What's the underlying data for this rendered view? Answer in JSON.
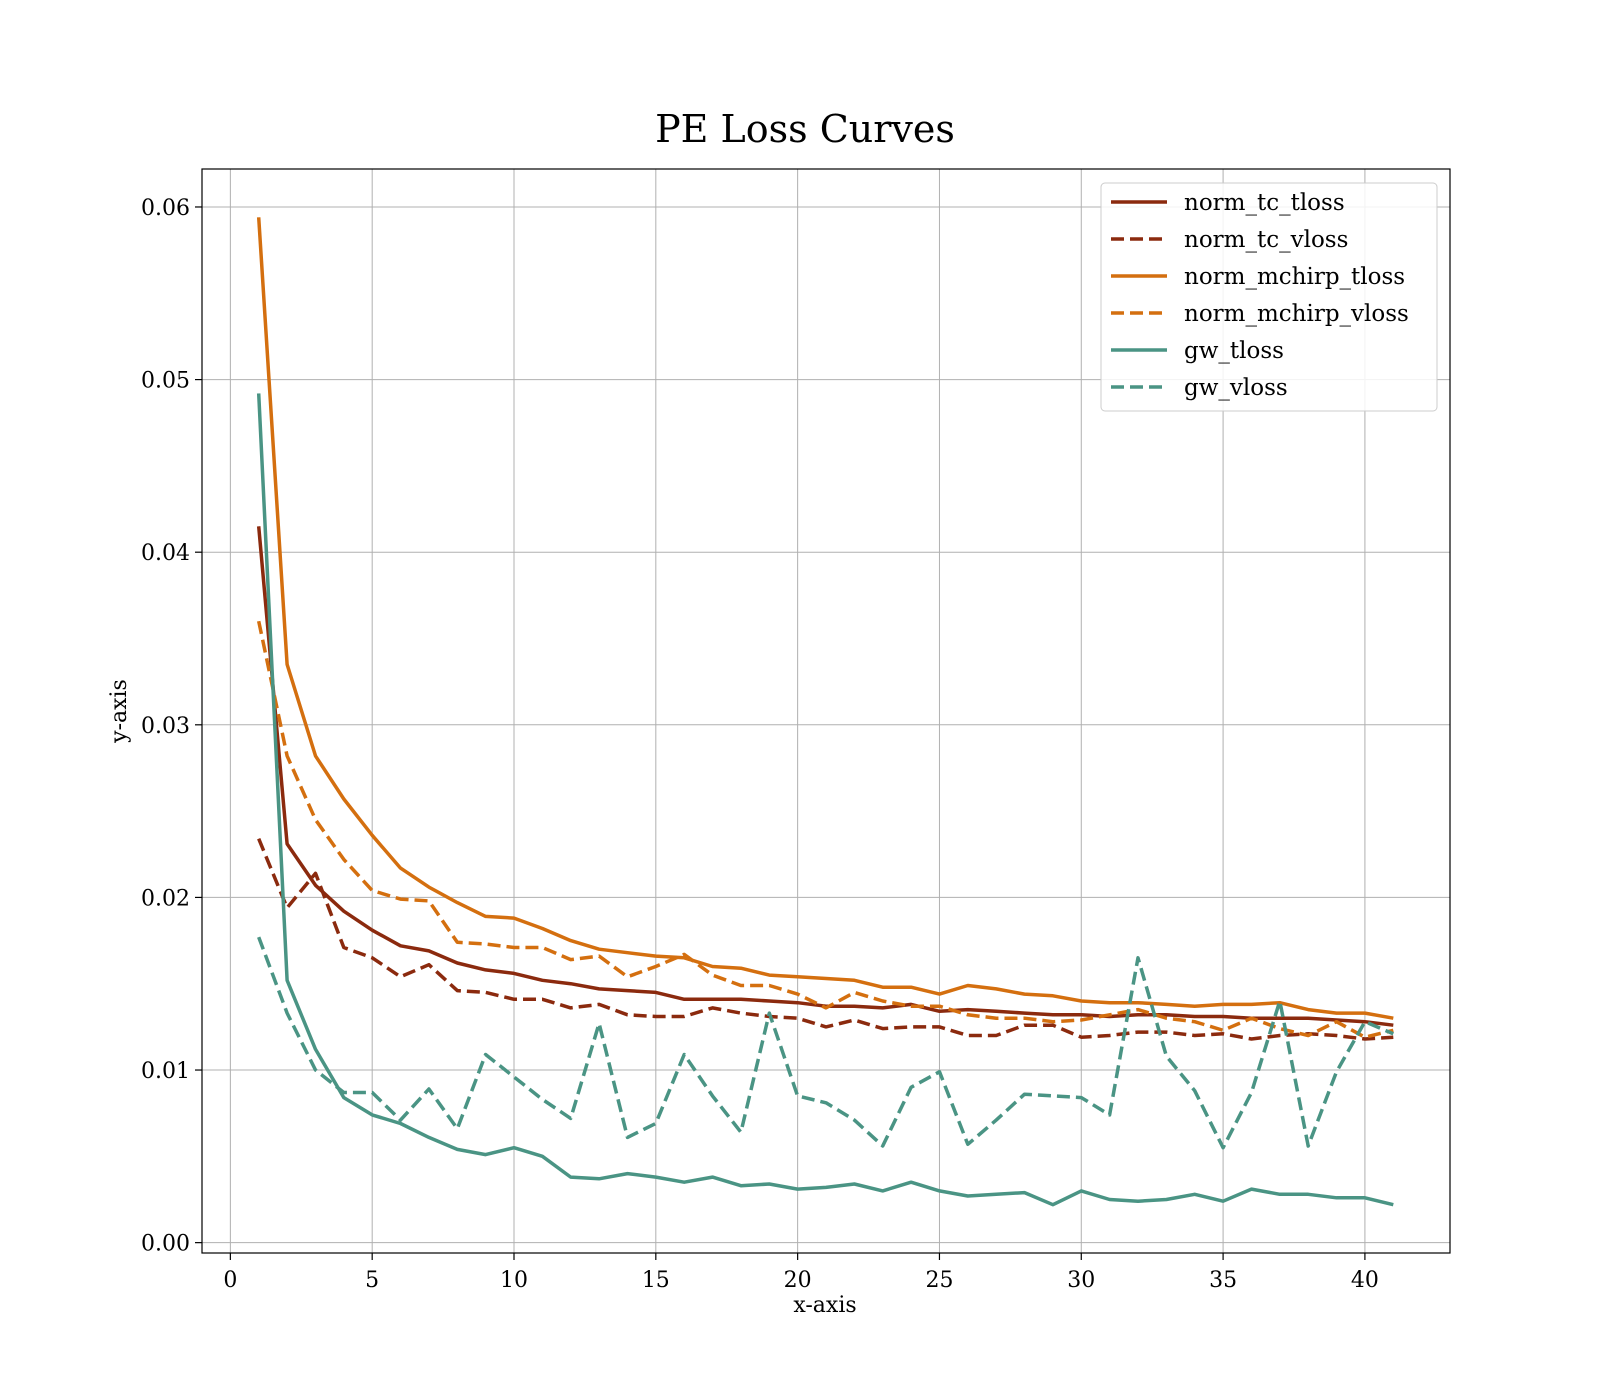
{
  "chart_data": {
    "type": "line",
    "title": "PE Loss Curves",
    "xlabel": "x-axis",
    "ylabel": "y-axis",
    "xlim": [
      -1,
      43
    ],
    "ylim": [
      -0.0006,
      0.0622
    ],
    "xticks": [
      0,
      5,
      10,
      15,
      20,
      25,
      30,
      35,
      40
    ],
    "xtick_labels": [
      "0",
      "5",
      "10",
      "15",
      "20",
      "25",
      "30",
      "35",
      "40"
    ],
    "yticks": [
      0.0,
      0.01,
      0.02,
      0.03,
      0.04,
      0.05,
      0.06
    ],
    "ytick_labels": [
      "0.00",
      "0.01",
      "0.02",
      "0.03",
      "0.04",
      "0.05",
      "0.06"
    ],
    "grid": true,
    "legend_position": "top-right",
    "x": [
      1,
      2,
      3,
      4,
      5,
      6,
      7,
      8,
      9,
      10,
      11,
      12,
      13,
      14,
      15,
      16,
      17,
      18,
      19,
      20,
      21,
      22,
      23,
      24,
      25,
      26,
      27,
      28,
      29,
      30,
      31,
      32,
      33,
      34,
      35,
      36,
      37,
      38,
      39,
      40,
      41
    ],
    "series": [
      {
        "name": "norm_tc_tloss",
        "color": "#8b2a0e",
        "dash": "solid",
        "values": [
          0.0415,
          0.0231,
          0.0207,
          0.0192,
          0.0181,
          0.0172,
          0.0169,
          0.0162,
          0.0158,
          0.0156,
          0.0152,
          0.015,
          0.0147,
          0.0146,
          0.0145,
          0.0141,
          0.0141,
          0.0141,
          0.014,
          0.0139,
          0.0137,
          0.0137,
          0.0136,
          0.0138,
          0.0134,
          0.0135,
          0.0134,
          0.0133,
          0.0132,
          0.0132,
          0.0131,
          0.0132,
          0.0132,
          0.0131,
          0.0131,
          0.013,
          0.013,
          0.013,
          0.0129,
          0.0128,
          0.0126
        ]
      },
      {
        "name": "norm_tc_vloss",
        "color": "#8b2a0e",
        "dash": "dashed",
        "values": [
          0.0234,
          0.0194,
          0.0214,
          0.0171,
          0.0165,
          0.0154,
          0.0161,
          0.0146,
          0.0145,
          0.0141,
          0.0141,
          0.0136,
          0.0138,
          0.0132,
          0.0131,
          0.0131,
          0.0136,
          0.0133,
          0.0131,
          0.013,
          0.0125,
          0.0129,
          0.0124,
          0.0125,
          0.0125,
          0.012,
          0.012,
          0.0126,
          0.0126,
          0.0119,
          0.012,
          0.0122,
          0.0122,
          0.012,
          0.0121,
          0.0118,
          0.012,
          0.0121,
          0.012,
          0.0118,
          0.0119
        ]
      },
      {
        "name": "norm_mchirp_tloss",
        "color": "#d46f0f",
        "dash": "solid",
        "values": [
          0.0594,
          0.0335,
          0.0282,
          0.0257,
          0.0236,
          0.0217,
          0.0206,
          0.0197,
          0.0189,
          0.0188,
          0.0182,
          0.0175,
          0.017,
          0.0168,
          0.0166,
          0.0165,
          0.016,
          0.0159,
          0.0155,
          0.0154,
          0.0153,
          0.0152,
          0.0148,
          0.0148,
          0.0144,
          0.0149,
          0.0147,
          0.0144,
          0.0143,
          0.014,
          0.0139,
          0.0139,
          0.0138,
          0.0137,
          0.0138,
          0.0138,
          0.0139,
          0.0135,
          0.0133,
          0.0133,
          0.013
        ]
      },
      {
        "name": "norm_mchirp_vloss",
        "color": "#d46f0f",
        "dash": "dashed",
        "values": [
          0.036,
          0.0282,
          0.0245,
          0.0222,
          0.0204,
          0.0199,
          0.0198,
          0.0174,
          0.0173,
          0.0171,
          0.0171,
          0.0164,
          0.0166,
          0.0154,
          0.016,
          0.0167,
          0.0155,
          0.0149,
          0.0149,
          0.0144,
          0.0136,
          0.0145,
          0.014,
          0.0137,
          0.0137,
          0.0132,
          0.013,
          0.013,
          0.0128,
          0.0129,
          0.0132,
          0.0135,
          0.013,
          0.0128,
          0.0123,
          0.013,
          0.0124,
          0.012,
          0.0128,
          0.0119,
          0.0123
        ]
      },
      {
        "name": "gw_tloss",
        "color": "#4a9484",
        "dash": "solid",
        "values": [
          0.0492,
          0.0152,
          0.0112,
          0.0084,
          0.0074,
          0.0069,
          0.0061,
          0.0054,
          0.0051,
          0.0055,
          0.005,
          0.0038,
          0.0037,
          0.004,
          0.0038,
          0.0035,
          0.0038,
          0.0033,
          0.0034,
          0.0031,
          0.0032,
          0.0034,
          0.003,
          0.0035,
          0.003,
          0.0027,
          0.0028,
          0.0029,
          0.0022,
          0.003,
          0.0025,
          0.0024,
          0.0025,
          0.0028,
          0.0024,
          0.0031,
          0.0028,
          0.0028,
          0.0026,
          0.0026,
          0.0022
        ]
      },
      {
        "name": "gw_vloss",
        "color": "#4a9484",
        "dash": "dashed",
        "values": [
          0.0177,
          0.0133,
          0.01,
          0.0087,
          0.0087,
          0.0071,
          0.0089,
          0.0066,
          0.0109,
          0.0096,
          0.0083,
          0.0072,
          0.0127,
          0.0061,
          0.0069,
          0.0109,
          0.0085,
          0.0064,
          0.0133,
          0.0085,
          0.0081,
          0.0071,
          0.0056,
          0.009,
          0.0099,
          0.0057,
          0.0071,
          0.0086,
          0.0085,
          0.0084,
          0.0074,
          0.0165,
          0.0108,
          0.0088,
          0.0055,
          0.0087,
          0.014,
          0.0056,
          0.0099,
          0.0128,
          0.0121
        ]
      }
    ]
  }
}
